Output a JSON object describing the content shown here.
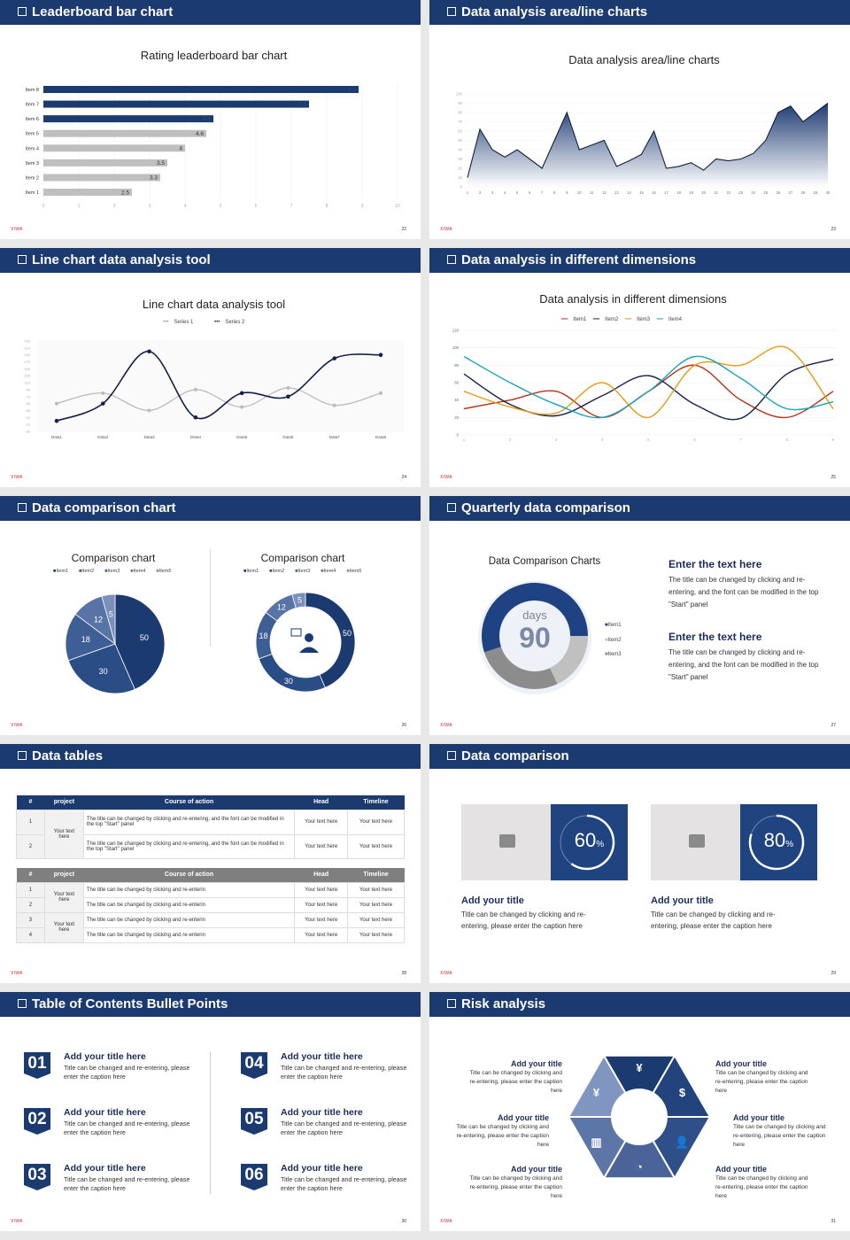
{
  "logo_text": "XIWA",
  "slides": [
    {
      "header": "Leaderboard bar chart",
      "page": "22"
    },
    {
      "header": "Data analysis area/line charts",
      "page": "23"
    },
    {
      "header": "Line chart data analysis tool",
      "page": "24"
    },
    {
      "header": "Data analysis in different dimensions",
      "page": "25"
    },
    {
      "header": "Data comparison chart",
      "page": "26"
    },
    {
      "header": "Quarterly data comparison",
      "page": "27",
      "blocks": [
        {
          "title": "Enter the text here",
          "text": "The title can be changed by clicking and re-entering, and the font can be modified in the top \"Start\" panel"
        },
        {
          "title": "Enter the text here",
          "text": "The title can be changed by clicking and re-entering, and the font can be modified in the top \"Start\" panel"
        }
      ]
    },
    {
      "header": "Data tables",
      "page": "28",
      "table1": {
        "columns": [
          "#",
          "project",
          "Course of action",
          "Head",
          "Timeline"
        ],
        "project": "Your text here",
        "rows": [
          {
            "num": "1",
            "action": "The title can be changed by clicking and re-entering, and the font can be modified in the top \"Start\" panel",
            "head": "Your text here",
            "timeline": "Your text here"
          },
          {
            "num": "2",
            "action": "The title can be changed by clicking and re-entering, and the font can be modified in the top \"Start\" panel",
            "head": "Your text here",
            "timeline": "Your text here"
          }
        ]
      },
      "table2": {
        "columns": [
          "#",
          "project",
          "Course of action",
          "Head",
          "Timeline"
        ],
        "project_a": "Your text here",
        "project_b": "Your text here",
        "rows": [
          {
            "num": "1",
            "action": "The title can be changed by clicking and re-enterin",
            "head": "Your text here",
            "timeline": "Your text here"
          },
          {
            "num": "2",
            "action": "The title can be changed by clicking and re-enterin",
            "head": "Your text here",
            "timeline": "Your text here"
          },
          {
            "num": "3",
            "action": "The title can be changed by clicking and re-enterin",
            "head": "Your text here",
            "timeline": "Your text here"
          },
          {
            "num": "4",
            "action": "The title can be changed by clicking and re-enterin",
            "head": "Your text here",
            "timeline": "Your text here"
          }
        ]
      }
    },
    {
      "header": "Data comparison",
      "page": "29",
      "cards": [
        {
          "percent": 60,
          "value": "60",
          "unit": "%",
          "title": "Add your title",
          "caption": "Title can be changed by clicking and re-entering, please enter the caption here"
        },
        {
          "percent": 80,
          "value": "80",
          "unit": "%",
          "title": "Add your title",
          "caption": "Title can be changed by clicking and re-entering, please enter the caption here"
        }
      ]
    },
    {
      "header": "Table of Contents Bullet Points",
      "page": "30",
      "items": [
        {
          "num": "01",
          "title": "Add your title here",
          "text": "Title can be changed and re-entering, please enter the caption here"
        },
        {
          "num": "02",
          "title": "Add your title here",
          "text": "Title can be changed and re-entering, please enter the caption here"
        },
        {
          "num": "03",
          "title": "Add your title here",
          "text": "Title can be changed and re-entering, please enter the caption here"
        },
        {
          "num": "04",
          "title": "Add your title here",
          "text": "Title can be changed and re-entering, please enter the caption here"
        },
        {
          "num": "05",
          "title": "Add your title here",
          "text": "Title can be changed and re-entering, please enter the caption here"
        },
        {
          "num": "06",
          "title": "Add your title here",
          "text": "Title can be changed and re-entering, please enter the caption here"
        }
      ]
    },
    {
      "header": "Risk analysis",
      "page": "31",
      "items": [
        {
          "title": "Add your title",
          "text": "Title can be changed by clicking and re-entering, please enter the caption here",
          "icon": "money-bag-icon"
        },
        {
          "title": "Add your title",
          "text": "Title can be changed by clicking and re-entering, please enter the caption here",
          "icon": "coins-icon"
        },
        {
          "title": "Add your title",
          "text": "Title can be changed by clicking and re-entering, please enter the caption here",
          "icon": "hand-money-icon"
        },
        {
          "title": "Add your title",
          "text": "Title can be changed by clicking and re-entering, please enter the caption here",
          "icon": "people-icon"
        },
        {
          "title": "Add your title",
          "text": "Title can be changed by clicking and re-entering, please enter the caption here",
          "icon": "building-icon"
        },
        {
          "title": "Add your title",
          "text": "Title can be changed by clicking and re-entering, please enter the caption here",
          "icon": "pie-chart-icon"
        }
      ]
    }
  ],
  "chart_data": [
    {
      "type": "bar",
      "orientation": "horizontal",
      "title": "Rating leaderboard bar chart",
      "categories": [
        "Item 1",
        "Item 2",
        "Item 3",
        "Item 4",
        "Item 5",
        "Item 6",
        "Item 7",
        "Item 8"
      ],
      "values": [
        2.5,
        3.3,
        3.5,
        4,
        4.6,
        4.8,
        7.5,
        8.9
      ],
      "colors": [
        "#bfbfbf",
        "#bfbfbf",
        "#bfbfbf",
        "#bfbfbf",
        "#bfbfbf",
        "#1b3a6f",
        "#1b3a6f",
        "#1b3a6f"
      ],
      "xlim": [
        0,
        10
      ],
      "xticks": [
        0,
        1,
        2,
        3,
        4,
        5,
        6,
        7,
        8,
        9,
        10
      ],
      "grid": true
    },
    {
      "type": "area",
      "title": "Data analysis area/line charts",
      "x": [
        1,
        2,
        3,
        4,
        5,
        6,
        7,
        8,
        9,
        10,
        11,
        12,
        13,
        14,
        15,
        16,
        17,
        18,
        19,
        20,
        21,
        22,
        23,
        24,
        25,
        26,
        27,
        28,
        29,
        30
      ],
      "values": [
        10,
        62,
        40,
        32,
        40,
        30,
        20,
        50,
        80,
        40,
        45,
        50,
        22,
        28,
        35,
        60,
        20,
        22,
        26,
        18,
        30,
        28,
        30,
        36,
        50,
        80,
        87,
        70,
        80,
        90
      ],
      "ylim": [
        0,
        100
      ],
      "yticks": [
        0,
        10,
        20,
        30,
        40,
        50,
        60,
        70,
        80,
        90,
        100
      ],
      "color": "#1f3c74"
    },
    {
      "type": "line",
      "title": "Line chart data analysis tool",
      "smooth": true,
      "categories": [
        "Data1",
        "Data2",
        "Data3",
        "Data4",
        "Data5",
        "Data6",
        "Data7",
        "Data8"
      ],
      "series": [
        {
          "name": "Series 1",
          "values": [
            50,
            80,
            30,
            90,
            40,
            95,
            45,
            80
          ],
          "color": "#bbbbbb"
        },
        {
          "name": "Series 2",
          "values": [
            0,
            50,
            200,
            10,
            80,
            70,
            180,
            190
          ],
          "color": "#14204a"
        }
      ],
      "ylim": [
        -30,
        230
      ],
      "yticks": [
        -30,
        -10,
        10,
        30,
        50,
        70,
        90,
        110,
        130,
        150,
        170,
        190,
        210,
        230
      ],
      "legend": "top"
    },
    {
      "type": "line",
      "title": "Data analysis in different dimensions",
      "smooth": true,
      "categories": [
        "1",
        "2",
        "3",
        "4",
        "5",
        "6",
        "7",
        "8",
        "9"
      ],
      "series": [
        {
          "name": "Item1",
          "values": [
            30,
            40,
            50,
            20,
            50,
            80,
            40,
            20,
            50
          ],
          "color": "#b3341a"
        },
        {
          "name": "Item2",
          "values": [
            70,
            35,
            22,
            45,
            68,
            35,
            19,
            70,
            87
          ],
          "color": "#14204a"
        },
        {
          "name": "Item3",
          "values": [
            50,
            32,
            25,
            60,
            20,
            80,
            80,
            100,
            30
          ],
          "color": "#e69a12"
        },
        {
          "name": "Item4",
          "values": [
            90,
            60,
            35,
            20,
            50,
            90,
            65,
            30,
            38
          ],
          "color": "#1aa3b8"
        }
      ],
      "ylim": [
        0,
        120
      ],
      "yticks": [
        0,
        20,
        40,
        60,
        80,
        100,
        120
      ],
      "grid": true,
      "legend": "top"
    },
    {
      "type": "pie",
      "title": "Comparison chart",
      "categories": [
        "Item1",
        "Item2",
        "Item3",
        "Item4",
        "Item5"
      ],
      "values": [
        50,
        30,
        18,
        12,
        5
      ],
      "colors": [
        "#1b3a6f",
        "#2b4d85",
        "#3e5f96",
        "#5873a6",
        "#7b90bb"
      ],
      "legend": "top"
    },
    {
      "type": "pie",
      "variant": "donut",
      "title": "Comparison chart",
      "categories": [
        "Item1",
        "Item2",
        "Item3",
        "Item4",
        "Item5"
      ],
      "values": [
        50,
        30,
        18,
        12,
        5
      ],
      "colors": [
        "#1b3a6f",
        "#2b4d85",
        "#3e5f96",
        "#5873a6",
        "#7b90bb"
      ],
      "legend": "top",
      "center_icon": "customer-service-icon"
    },
    {
      "type": "pie",
      "variant": "donut",
      "title": "Data Comparison Charts",
      "categories": [
        "Item1",
        "Item2",
        "Item3"
      ],
      "values": [
        55,
        18,
        27
      ],
      "colors": [
        "#1f4283",
        "#c0c0c0",
        "#8c8c8c"
      ],
      "legend": "right",
      "center_label": "days",
      "center_value": "90"
    }
  ]
}
